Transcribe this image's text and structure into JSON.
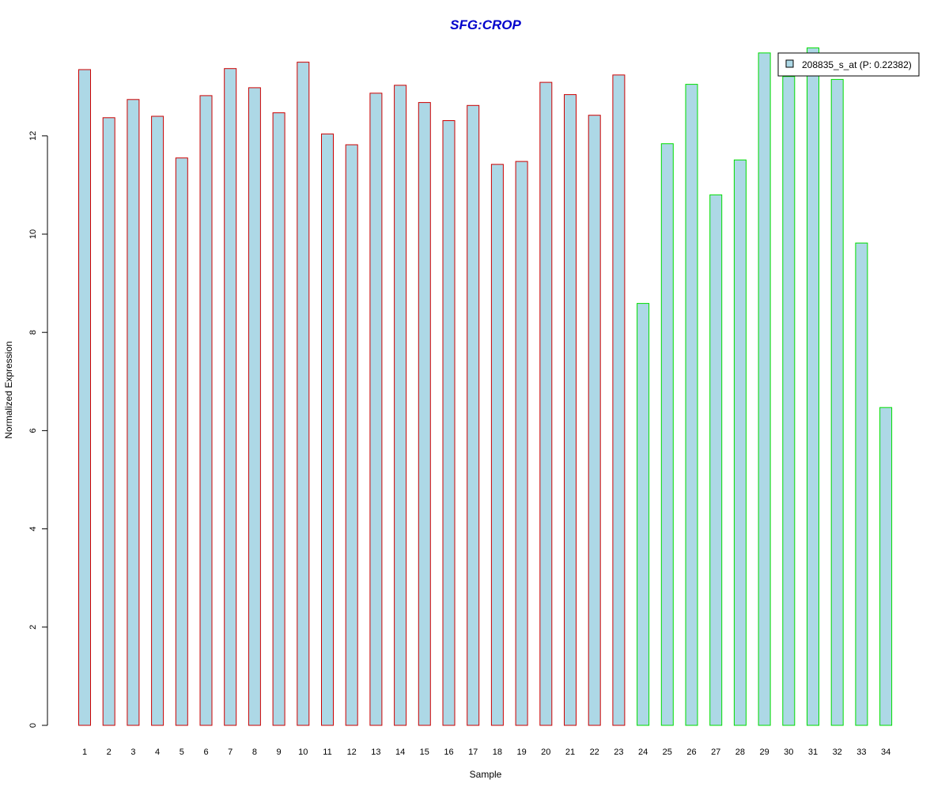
{
  "chart_data": {
    "type": "bar",
    "title": "SFG:CROP",
    "title_color": "#0000cc",
    "xlabel": "Sample",
    "ylabel": "Normalized Expression",
    "ylim": [
      0,
      14
    ],
    "yticks": [
      0,
      2,
      4,
      6,
      8,
      10,
      12
    ],
    "grid": false,
    "legend_position": "top-right",
    "bar_fill": "#add8e6",
    "categories": [
      "1",
      "2",
      "3",
      "4",
      "5",
      "6",
      "7",
      "8",
      "9",
      "10",
      "11",
      "12",
      "13",
      "14",
      "15",
      "16",
      "17",
      "18",
      "19",
      "20",
      "21",
      "22",
      "23",
      "24",
      "25",
      "26",
      "27",
      "28",
      "29",
      "30",
      "31",
      "32",
      "33",
      "34"
    ],
    "series": [
      {
        "name": "208835_s_at (P: 0.22382)",
        "values": [
          13.35,
          12.37,
          12.74,
          12.4,
          11.55,
          12.82,
          13.37,
          12.98,
          12.47,
          13.5,
          12.04,
          11.82,
          12.87,
          13.03,
          12.68,
          12.31,
          12.62,
          11.42,
          11.48,
          13.09,
          12.84,
          12.42,
          13.24,
          8.59,
          11.84,
          13.05,
          10.8,
          11.51,
          13.69,
          13.21,
          13.79,
          13.15,
          9.82,
          6.47
        ],
        "groups": [
          "red",
          "red",
          "red",
          "red",
          "red",
          "red",
          "red",
          "red",
          "red",
          "red",
          "red",
          "red",
          "red",
          "red",
          "red",
          "red",
          "red",
          "red",
          "red",
          "red",
          "red",
          "red",
          "red",
          "green",
          "green",
          "green",
          "green",
          "green",
          "green",
          "green",
          "green",
          "green",
          "green",
          "green"
        ]
      }
    ],
    "group_colors": {
      "red": "#cc0000",
      "green": "#00dd00"
    }
  }
}
